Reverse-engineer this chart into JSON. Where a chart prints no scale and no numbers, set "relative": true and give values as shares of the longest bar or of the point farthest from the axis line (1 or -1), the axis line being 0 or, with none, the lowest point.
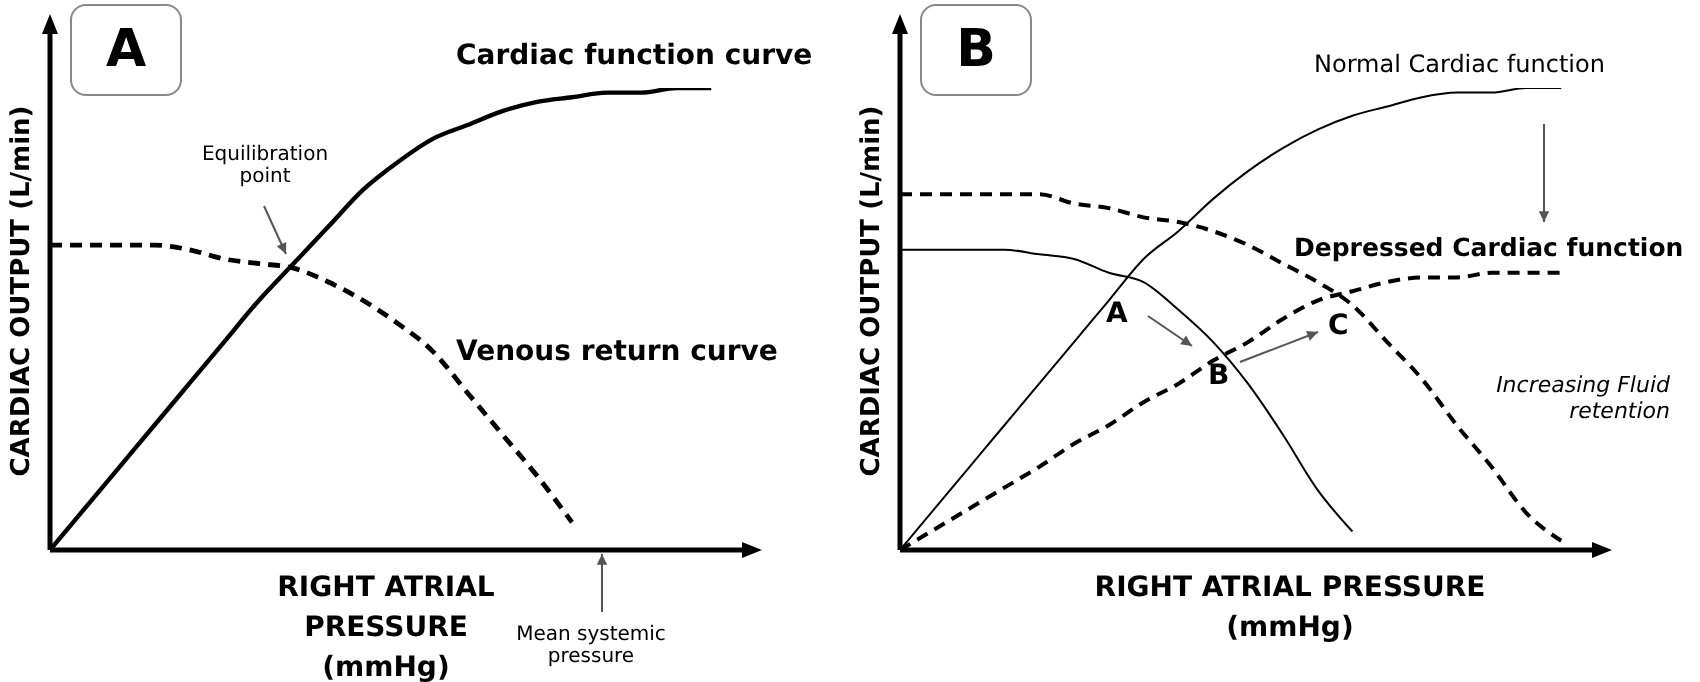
{
  "chart_data": [
    {
      "type": "line",
      "title": "A",
      "relative": true,
      "xlabel": "RIGHT ATRIAL PRESSURE (mmHg)",
      "ylabel": "CARDIAC OUTPUT (L/min)",
      "grid": false,
      "legend": false,
      "tick_labels": false,
      "marker": "none",
      "categories": [
        null,
        null,
        null,
        null,
        null,
        null,
        null,
        null,
        null,
        null,
        null,
        null,
        null,
        null,
        null,
        null,
        null,
        null,
        null,
        null,
        null
      ],
      "series": [
        {
          "name": "Cardiac function curve",
          "color": "#000000",
          "line_style": "solid",
          "values": [
            0,
            0.09,
            0.18,
            0.27,
            0.36,
            0.45,
            0.54,
            0.62,
            0.7,
            0.78,
            0.84,
            0.89,
            0.92,
            0.95,
            0.97,
            0.98,
            0.99,
            0.99,
            1,
            1,
            null
          ]
        },
        {
          "name": "Venous return curve",
          "color": "#000000",
          "line_style": "dashed",
          "values": [
            0.66,
            0.66,
            0.66,
            0.66,
            0.65,
            0.63,
            0.62,
            0.61,
            0.58,
            0.54,
            0.49,
            0.43,
            0.34,
            0.25,
            0.16,
            0.06,
            null,
            null,
            null,
            null,
            null
          ]
        }
      ],
      "annotations": [
        "Equilibration point",
        "Mean systemic pressure"
      ]
    },
    {
      "type": "line",
      "title": "B",
      "relative": true,
      "xlabel": "RIGHT ATRIAL PRESSURE (mmHg)",
      "ylabel": "CARDIAC OUTPUT (L/min)",
      "grid": false,
      "legend": false,
      "tick_labels": false,
      "marker": "none",
      "categories": [
        null,
        null,
        null,
        null,
        null,
        null,
        null,
        null,
        null,
        null,
        null,
        null,
        null,
        null,
        null,
        null,
        null,
        null,
        null,
        null,
        null
      ],
      "series": [
        {
          "name": "Normal Cardiac function",
          "color": "#000000",
          "line_style": "solid",
          "values": [
            0,
            0.09,
            0.18,
            0.27,
            0.36,
            0.45,
            0.54,
            0.63,
            0.69,
            0.76,
            0.82,
            0.87,
            0.91,
            0.94,
            0.96,
            0.98,
            0.99,
            0.99,
            1,
            1,
            null
          ]
        },
        {
          "name": "Depressed Cardiac function",
          "color": "#000000",
          "line_style": "dashed",
          "values": [
            0,
            0.045,
            0.09,
            0.135,
            0.18,
            0.23,
            0.27,
            0.32,
            0.36,
            0.41,
            0.45,
            0.5,
            0.54,
            0.56,
            0.58,
            0.59,
            0.59,
            0.6,
            0.6,
            0.6,
            null
          ]
        },
        {
          "color": "#000000",
          "line_style": "solid",
          "values": [
            0.65,
            0.65,
            0.65,
            0.65,
            0.64,
            0.63,
            0.6,
            0.58,
            0.52,
            0.45,
            0.36,
            0.25,
            0.13,
            0.04,
            null,
            null,
            null,
            null,
            null,
            null,
            null
          ]
        },
        {
          "color": "#000000",
          "line_style": "dashed",
          "values": [
            0.77,
            0.77,
            0.77,
            0.77,
            0.77,
            0.75,
            0.74,
            0.72,
            0.71,
            0.69,
            0.66,
            0.62,
            0.58,
            0.53,
            0.45,
            0.37,
            0.27,
            0.18,
            0.08,
            0.02,
            null
          ]
        }
      ],
      "annotations": [
        "Increasing Fluid retention",
        "A",
        "B",
        "C"
      ]
    }
  ]
}
